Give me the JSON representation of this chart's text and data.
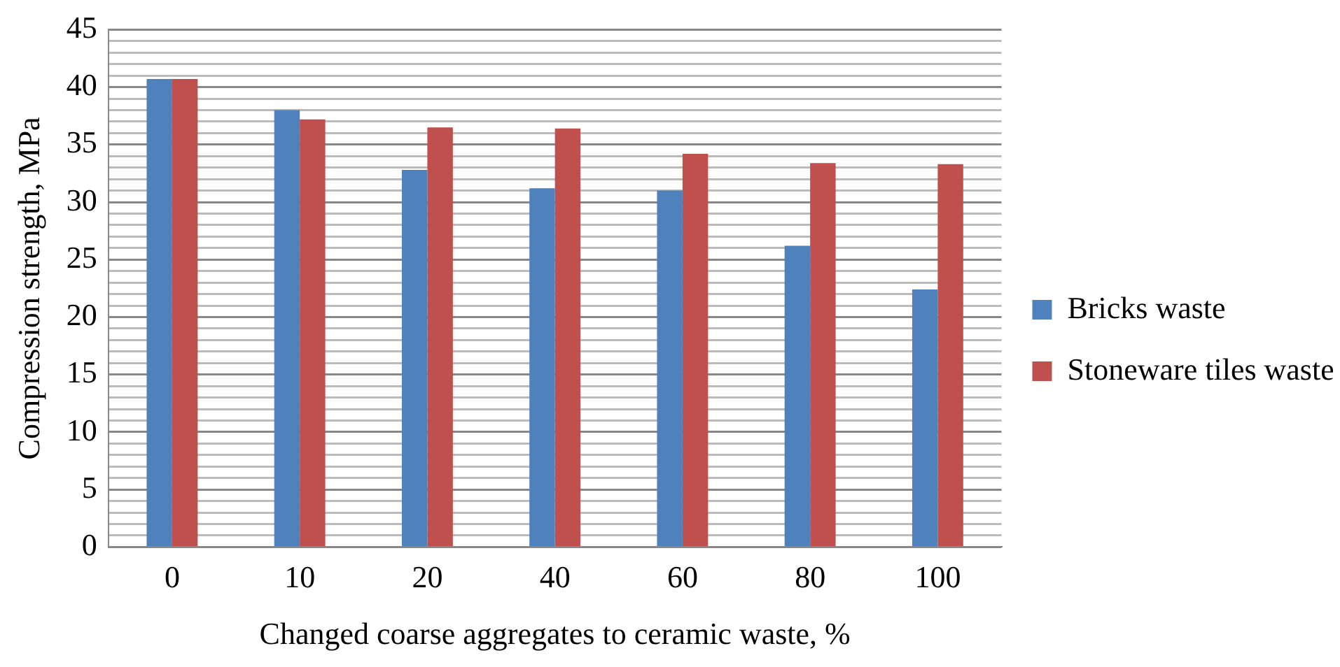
{
  "chart_data": {
    "type": "bar",
    "xlabel": "Changed coarse aggregates to ceramic waste, %",
    "ylabel": "Compression strength, MPa",
    "categories": [
      "0",
      "10",
      "20",
      "40",
      "60",
      "80",
      "100"
    ],
    "series": [
      {
        "name": "Bricks waste",
        "color": "#4f81bd",
        "values": [
          40.7,
          38.0,
          32.8,
          31.2,
          31.0,
          26.2,
          22.4
        ]
      },
      {
        "name": "Stoneware tiles waste",
        "color": "#c0504d",
        "values": [
          40.7,
          37.2,
          36.5,
          36.4,
          34.2,
          33.4,
          33.3
        ]
      }
    ],
    "ylim": [
      0,
      45
    ],
    "yticks": [
      0,
      {
        "value": 1,
        "label": null
      },
      {
        "value": 2,
        "label": null
      },
      {
        "value": 3,
        "label": null
      },
      {
        "value": 4,
        "label": null
      },
      5,
      {
        "value": 6,
        "label": null
      },
      {
        "value": 7,
        "label": null
      },
      {
        "value": 8,
        "label": null
      },
      {
        "value": 9,
        "label": null
      },
      10,
      {
        "value": 11,
        "label": null
      },
      {
        "value": 12,
        "label": null
      },
      {
        "value": 13,
        "label": null
      },
      {
        "value": 14,
        "label": null
      },
      15,
      {
        "value": 16,
        "label": null
      },
      {
        "value": 17,
        "label": null
      },
      {
        "value": 18,
        "label": null
      },
      {
        "value": 19,
        "label": null
      },
      20,
      {
        "value": 21,
        "label": null
      },
      {
        "value": 22,
        "label": null
      },
      {
        "value": 23,
        "label": null
      },
      {
        "value": 24,
        "label": null
      },
      25,
      {
        "value": 26,
        "label": null
      },
      {
        "value": 27,
        "label": null
      },
      {
        "value": 28,
        "label": null
      },
      {
        "value": 29,
        "label": null
      },
      30,
      {
        "value": 31,
        "label": null
      },
      {
        "value": 32,
        "label": null
      },
      {
        "value": 33,
        "label": null
      },
      {
        "value": 34,
        "label": null
      },
      35,
      {
        "value": 36,
        "label": null
      },
      {
        "value": 37,
        "label": null
      },
      {
        "value": 38,
        "label": null
      },
      {
        "value": 39,
        "label": null
      },
      40,
      {
        "value": 41,
        "label": null
      },
      {
        "value": 42,
        "label": null
      },
      {
        "value": 43,
        "label": null
      },
      {
        "value": 44,
        "label": null
      },
      45
    ],
    "grid": "y",
    "legend": "right"
  }
}
